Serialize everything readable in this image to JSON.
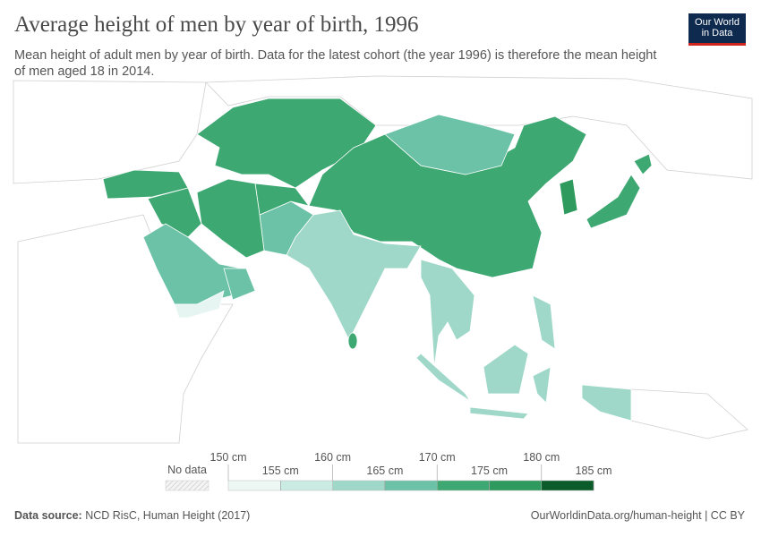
{
  "header": {
    "title": "Average height of men by year of birth, 1996",
    "subtitle": "Mean height of adult men by year of birth. Data for the latest cohort (the year 1996) is therefore the mean height of men aged 18 in 2014.",
    "logo": [
      "Our World",
      "in Data"
    ]
  },
  "legend": {
    "no_data": "No data",
    "bounds": [
      "150 cm",
      "155 cm",
      "160 cm",
      "165 cm",
      "170 cm",
      "175 cm",
      "180 cm",
      "185 cm"
    ],
    "colors": [
      "#edf8f5",
      "#c9ebe2",
      "#9fd8c8",
      "#6cc2a6",
      "#3ea873",
      "#2e9a5e",
      "#0b5c2a"
    ]
  },
  "footer": {
    "source_label": "Data source:",
    "source": "NCD RisC, Human Height (2017)",
    "link": "OurWorldinData.org/human-height | CC BY"
  }
}
